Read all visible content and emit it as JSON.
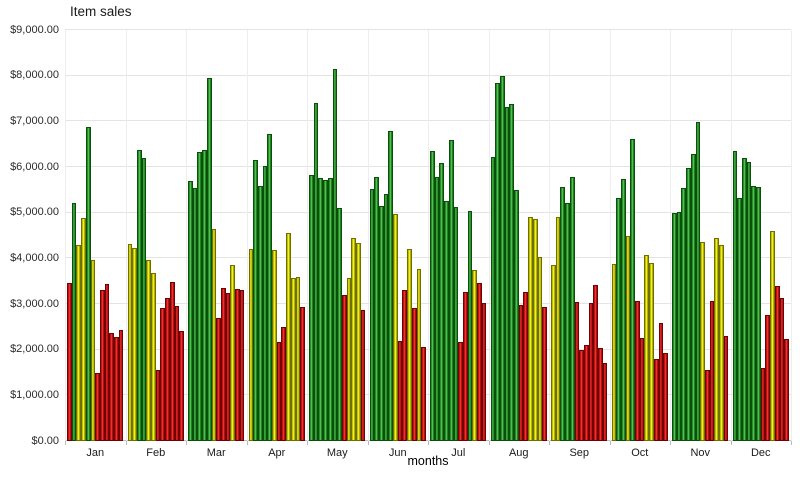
{
  "chart_data": {
    "type": "bar",
    "title": "Item sales",
    "xlabel": "months",
    "ylabel": "",
    "ylim": [
      0,
      9000
    ],
    "ytick_step": 1000,
    "ytick_labels": [
      "$0.00",
      "$1,000.00",
      "$2,000.00",
      "$3,000.00",
      "$4,000.00",
      "$5,000.00",
      "$6,000.00",
      "$7,000.00",
      "$8,000.00",
      "$9,000.00"
    ],
    "categories": [
      "Jan",
      "Feb",
      "Mar",
      "Apr",
      "May",
      "Jun",
      "Jul",
      "Aug",
      "Sep",
      "Oct",
      "Nov",
      "Dec"
    ],
    "grid": true,
    "legend_position": "none",
    "bars_per_category": 12,
    "bar_color_rule": {
      "green_if_at_least": 5000,
      "yellow_if_at_least": 3500,
      "red_if_below": 3500
    },
    "palette": {
      "green": "#2f9b2f",
      "yellow": "#d8d800",
      "red": "#d51a1a"
    },
    "series": [
      {
        "month": "Jan",
        "values": [
          3450,
          5210,
          4290,
          4880,
          6870,
          3960,
          1500,
          3300,
          3440,
          2360,
          2280,
          2430
        ]
      },
      {
        "month": "Feb",
        "values": [
          4310,
          4220,
          6370,
          6190,
          3960,
          3680,
          1550,
          2910,
          3130,
          3480,
          2960,
          2410
        ]
      },
      {
        "month": "Mar",
        "values": [
          5700,
          5540,
          6330,
          6380,
          7960,
          4650,
          2700,
          3350,
          3240,
          3850,
          3330,
          3300
        ]
      },
      {
        "month": "Apr",
        "values": [
          4200,
          6150,
          5580,
          6020,
          6720,
          4180,
          2170,
          2500,
          4550,
          3570,
          3590,
          2930
        ]
      },
      {
        "month": "May",
        "values": [
          5820,
          7400,
          5750,
          5710,
          5750,
          8150,
          5100,
          3190,
          3570,
          4440,
          4330,
          2870
        ]
      },
      {
        "month": "Jun",
        "values": [
          5510,
          5790,
          5140,
          5420,
          6780,
          4970,
          2190,
          3300,
          4200,
          2910,
          3760,
          2060
        ]
      },
      {
        "month": "Jul",
        "values": [
          6350,
          5780,
          6090,
          5250,
          6590,
          5120,
          2170,
          3260,
          5030,
          3740,
          3460,
          3020
        ]
      },
      {
        "month": "Aug",
        "values": [
          6220,
          7850,
          7990,
          7310,
          7390,
          5490,
          2980,
          3260,
          4900,
          4860,
          4030,
          2930
        ]
      },
      {
        "month": "Sep",
        "values": [
          3850,
          4900,
          5560,
          5210,
          5780,
          3040,
          1990,
          2100,
          3020,
          3410,
          2030,
          1710
        ]
      },
      {
        "month": "Oct",
        "values": [
          3870,
          5320,
          5730,
          4490,
          6610,
          3060,
          2250,
          4070,
          3890,
          1790,
          2580,
          1930
        ]
      },
      {
        "month": "Nov",
        "values": [
          5000,
          5020,
          5540,
          5970,
          6280,
          6980,
          4360,
          1550,
          3060,
          4440,
          4290,
          2300
        ]
      },
      {
        "month": "Dec",
        "values": [
          6350,
          5320,
          6190,
          6110,
          5580,
          5560,
          1600,
          2760,
          4600,
          3390,
          3130,
          2230
        ]
      }
    ]
  }
}
